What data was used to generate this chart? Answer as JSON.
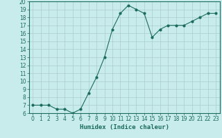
{
  "title": "",
  "xlabel": "Humidex (Indice chaleur)",
  "ylabel": "",
  "x": [
    0,
    1,
    2,
    3,
    4,
    5,
    6,
    7,
    8,
    9,
    10,
    11,
    12,
    13,
    14,
    15,
    16,
    17,
    18,
    19,
    20,
    21,
    22,
    23
  ],
  "y": [
    7,
    7,
    7,
    6.5,
    6.5,
    6,
    6.5,
    8.5,
    10.5,
    13,
    16.5,
    18.5,
    19.5,
    19,
    18.5,
    15.5,
    16.5,
    17,
    17,
    17,
    17.5,
    18,
    18.5,
    18.5
  ],
  "line_color": "#1a6b5a",
  "marker": "o",
  "marker_size": 2,
  "bg_color": "#c8ecec",
  "grid_color": "#aacccc",
  "ylim": [
    6,
    20
  ],
  "xlim": [
    -0.5,
    23.5
  ],
  "yticks": [
    6,
    7,
    8,
    9,
    10,
    11,
    12,
    13,
    14,
    15,
    16,
    17,
    18,
    19,
    20
  ],
  "xticks": [
    0,
    1,
    2,
    3,
    4,
    5,
    6,
    7,
    8,
    9,
    10,
    11,
    12,
    13,
    14,
    15,
    16,
    17,
    18,
    19,
    20,
    21,
    22,
    23
  ],
  "tick_label_fontsize": 5.5,
  "xlabel_fontsize": 6.5,
  "axis_color": "#1a6b5a",
  "linewidth": 0.8
}
